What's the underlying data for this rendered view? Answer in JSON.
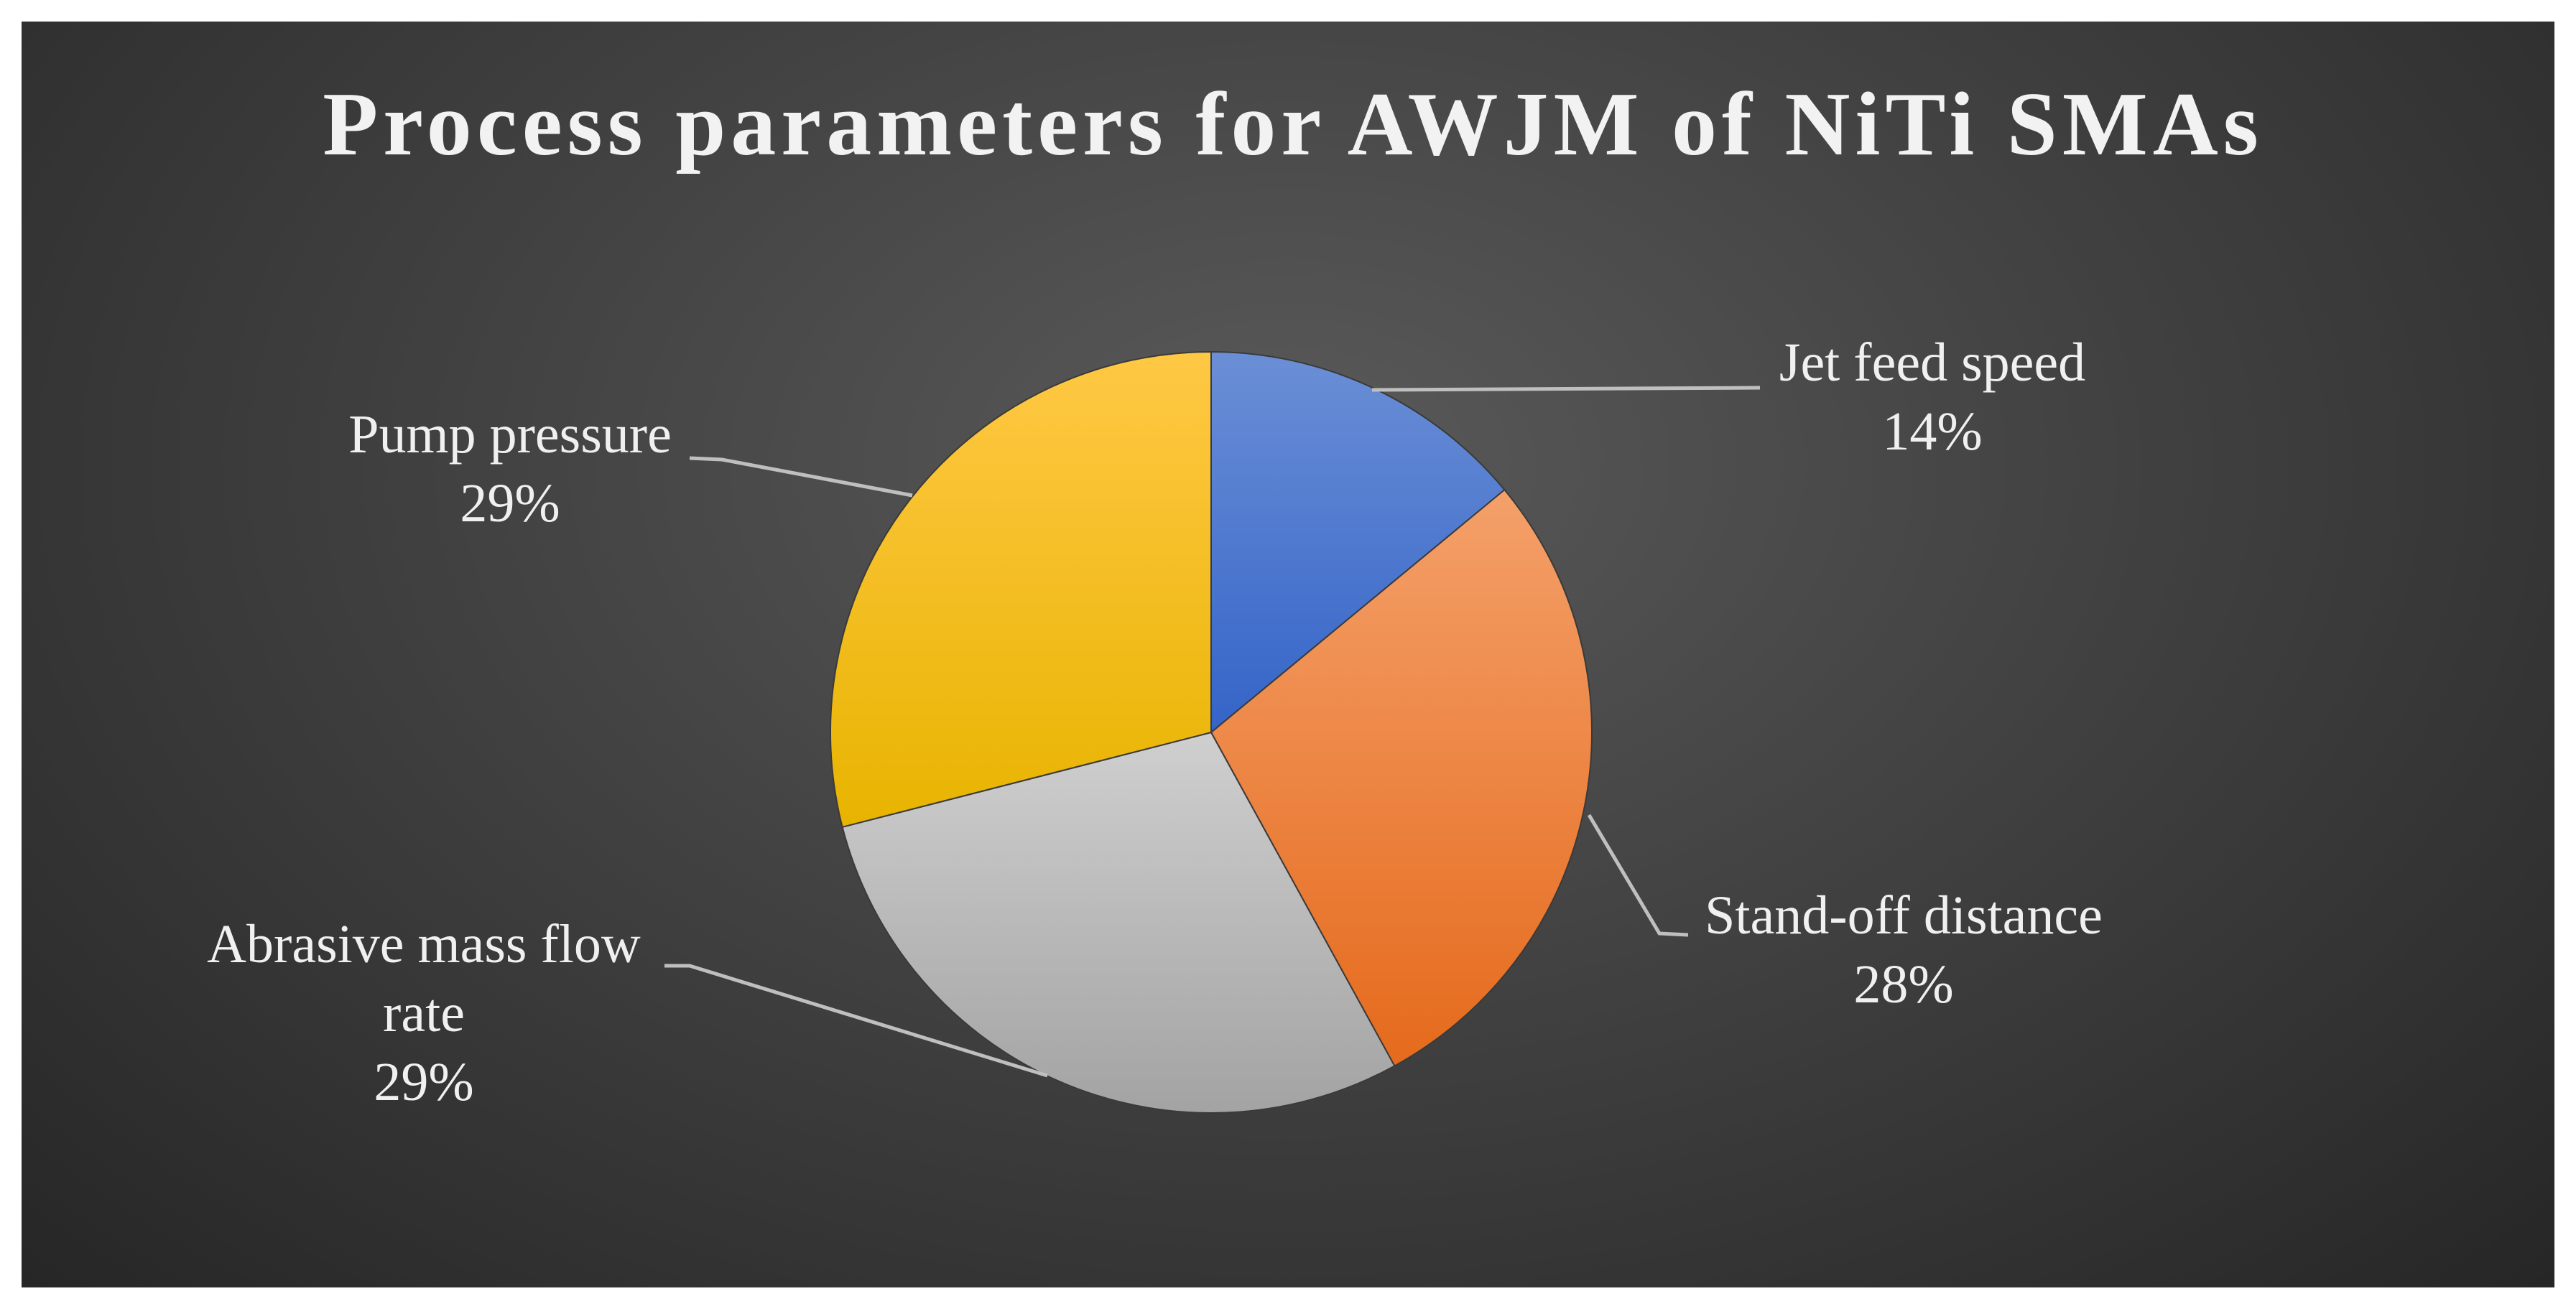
{
  "chart_data": {
    "type": "pie",
    "title": "Process parameters for AWJM of NiTi SMAs",
    "start_angle_deg": 0,
    "direction": "clockwise",
    "slices": [
      {
        "label_lines": [
          "Jet feed speed"
        ],
        "value": 14,
        "value_label": "14%",
        "color_light": "#6b8fd6",
        "color_dark": "#3464c8"
      },
      {
        "label_lines": [
          "Stand-off distance"
        ],
        "value": 28,
        "value_label": "28%",
        "color_light": "#f4a06a",
        "color_dark": "#e56a1c"
      },
      {
        "label_lines": [
          "Abrasive mass flow",
          "rate"
        ],
        "value": 29,
        "value_label": "29%",
        "color_light": "#cfcfcf",
        "color_dark": "#a3a3a3"
      },
      {
        "label_lines": [
          "Pump pressure"
        ],
        "value": 29,
        "value_label": "29%",
        "color_light": "#ffc845",
        "color_dark": "#e8b400"
      }
    ],
    "legend": "none",
    "data_labels": "outside-with-leader-lines",
    "background": "#3f3f3f"
  }
}
